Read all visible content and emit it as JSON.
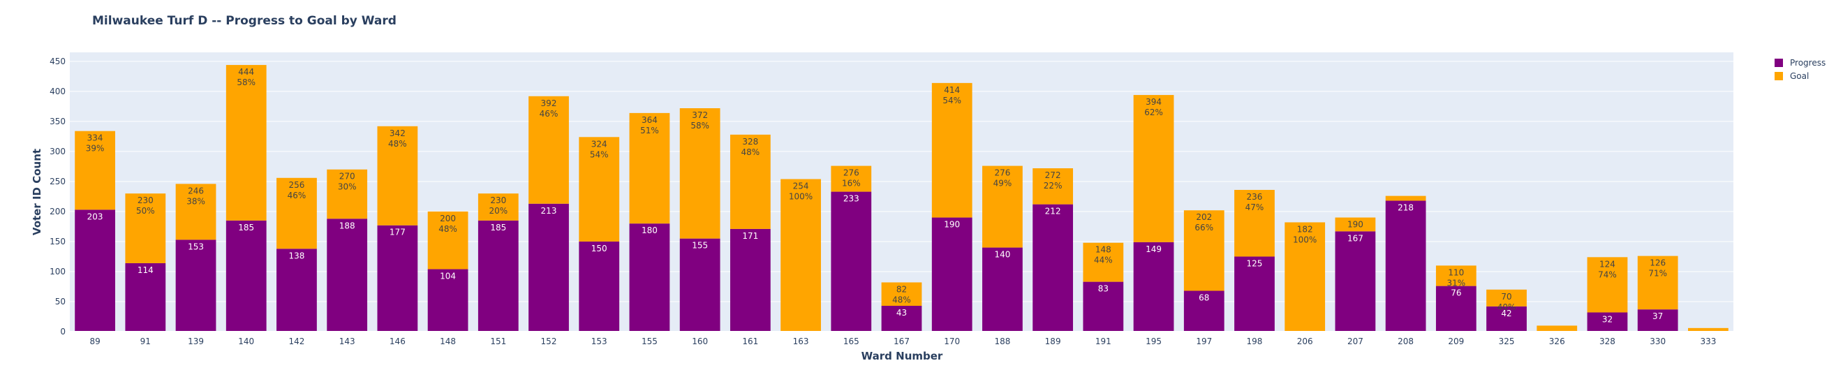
{
  "chart_data": {
    "type": "bar",
    "barmode": "stack",
    "title": "Milwaukee Turf D -- Progress to Goal by Ward",
    "xlabel": "Ward Number",
    "ylabel": "Voter ID Count",
    "ylim": [
      0,
      465
    ],
    "yticks": [
      0,
      50,
      100,
      150,
      200,
      250,
      300,
      350,
      400,
      450
    ],
    "grid": true,
    "legend_position": "top-right",
    "categories": [
      "89",
      "91",
      "139",
      "140",
      "142",
      "143",
      "146",
      "148",
      "151",
      "152",
      "153",
      "155",
      "160",
      "161",
      "163",
      "165",
      "167",
      "170",
      "188",
      "189",
      "191",
      "195",
      "197",
      "198",
      "206",
      "207",
      "208",
      "209",
      "325",
      "326",
      "328",
      "330",
      "333"
    ],
    "series": [
      {
        "name": "Progress",
        "color": "#800080",
        "values": [
          203,
          114,
          153,
          185,
          138,
          188,
          177,
          104,
          185,
          213,
          150,
          180,
          155,
          171,
          0,
          233,
          43,
          190,
          140,
          212,
          83,
          149,
          68,
          125,
          0,
          167,
          218,
          76,
          42,
          0,
          32,
          37,
          0
        ],
        "labels": [
          "203",
          "114",
          "153",
          "185",
          "138",
          "188",
          "177",
          "104",
          "185",
          "213",
          "150",
          "180",
          "155",
          "171",
          "",
          "233",
          "43",
          "190",
          "140",
          "212",
          "83",
          "149",
          "68",
          "125",
          "",
          "167",
          "218",
          "76",
          "42",
          "",
          "32",
          "37",
          ""
        ]
      },
      {
        "name": "Goal",
        "color": "#FFA500",
        "values": [
          131,
          116,
          93,
          259,
          118,
          82,
          165,
          96,
          45,
          179,
          174,
          184,
          217,
          157,
          254,
          43,
          39,
          224,
          136,
          60,
          65,
          245,
          134,
          111,
          182,
          23,
          8,
          34,
          28,
          10,
          92,
          89,
          6
        ],
        "totals": [
          334,
          230,
          246,
          444,
          256,
          270,
          342,
          200,
          230,
          392,
          324,
          364,
          372,
          328,
          254,
          276,
          82,
          414,
          276,
          272,
          148,
          394,
          202,
          236,
          182,
          190,
          226,
          110,
          70,
          10,
          124,
          126,
          6
        ],
        "labels": [
          "334\n39%",
          "230\n50%",
          "246\n38%",
          "444\n58%",
          "256\n46%",
          "270\n30%",
          "342\n48%",
          "200\n48%",
          "230\n20%",
          "392\n46%",
          "324\n54%",
          "364\n51%",
          "372\n58%",
          "328\n48%",
          "254\n100%",
          "276\n16%",
          "82\n48%",
          "414\n54%",
          "276\n49%",
          "272\n22%",
          "148\n44%",
          "394\n62%",
          "202\n66%",
          "236\n47%",
          "182\n100%",
          "190\n",
          "",
          "110\n31%",
          "70\n40%",
          "",
          "124\n74%",
          "126\n71%",
          ""
        ]
      }
    ]
  },
  "legend": {
    "items": [
      {
        "label": "Progress",
        "color": "#800080"
      },
      {
        "label": "Goal",
        "color": "#FFA500"
      }
    ]
  }
}
